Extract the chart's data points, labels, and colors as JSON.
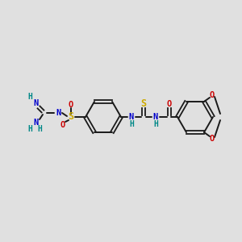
{
  "bg_color": "#e0e0e0",
  "bond_color": "#1a1a1a",
  "colors": {
    "N": "#0000cc",
    "O": "#cc0000",
    "S": "#ccaa00",
    "H": "#008888",
    "C": "#1a1a1a"
  },
  "figsize": [
    3.0,
    3.0
  ],
  "dpi": 100
}
